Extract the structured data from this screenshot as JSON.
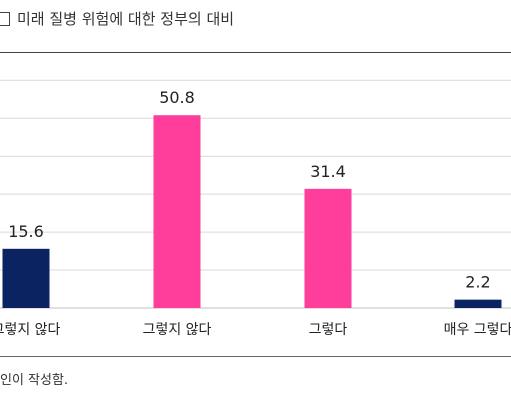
{
  "title": "미래 질병 위험에 대한 정부의 대비",
  "source_text": "인이 작성함.",
  "colors": {
    "navy": "#0b2360",
    "pink": "#ff3d9a",
    "grid": "#d9d9d9",
    "axis": "#bfbfbf",
    "text": "#222222"
  },
  "chart_data": {
    "type": "bar",
    "categories": [
      "그렇지 않다",
      "그렇지 않다",
      "그렇다",
      "매우 그렇다"
    ],
    "values": [
      15.6,
      50.8,
      31.4,
      2.2
    ],
    "bar_colors": [
      "#0b2360",
      "#ff3d9a",
      "#ff3d9a",
      "#0b2360"
    ],
    "data_labels": [
      "15.6",
      "50.8",
      "31.4",
      "2.2"
    ],
    "title": "",
    "xlabel": "",
    "ylabel": "",
    "ylim": [
      0,
      60
    ],
    "grid": true
  }
}
